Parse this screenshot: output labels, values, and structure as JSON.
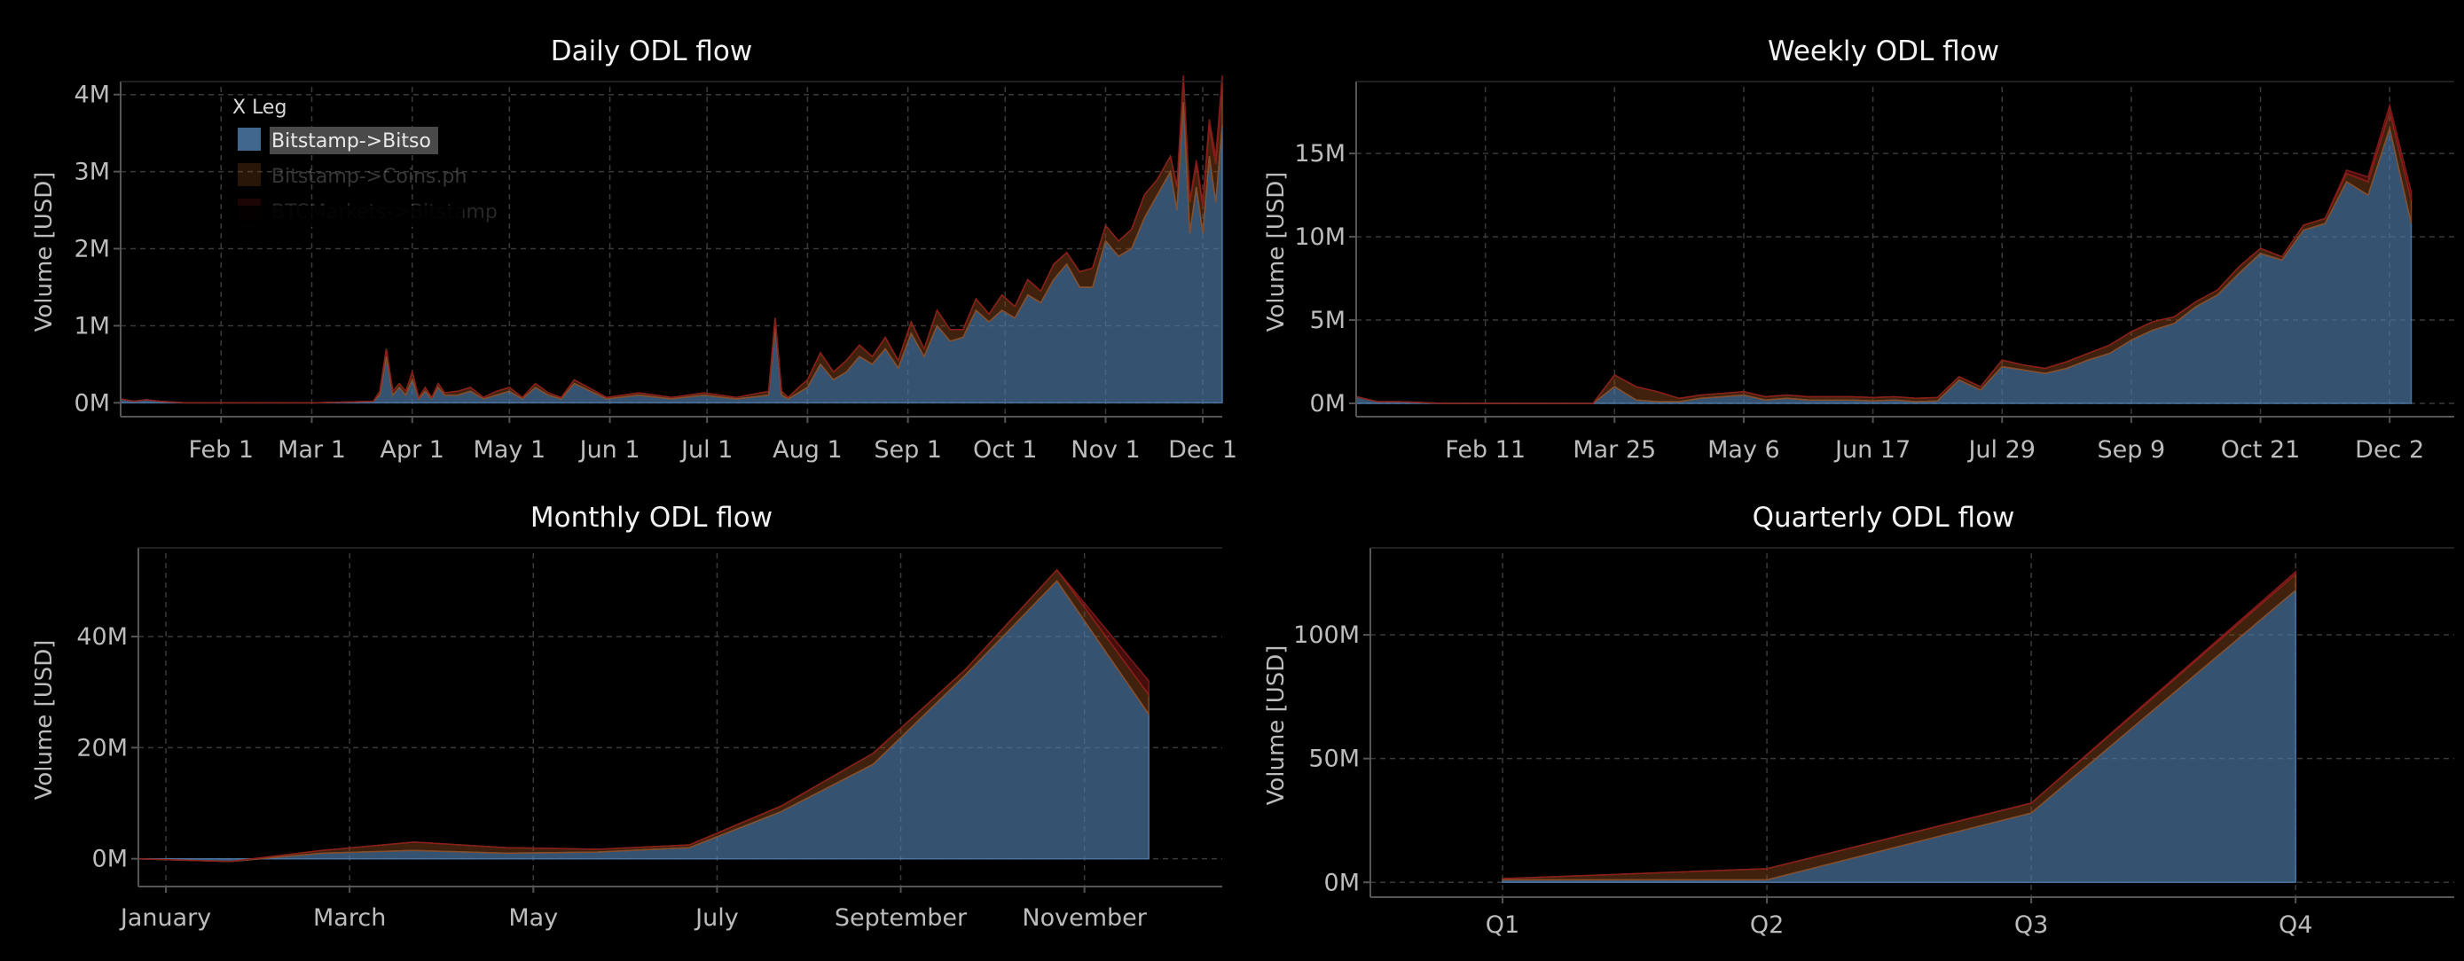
{
  "colors": {
    "background": "#000000",
    "series1": "#4e79a7",
    "series2": "#8c4a1f",
    "series3": "#8b1a1a",
    "grid": "#3a3a3a",
    "axis": "#555555",
    "text": "#e6e6e6"
  },
  "chart_data": [
    {
      "type": "area",
      "stacked": true,
      "title": "Daily ODL flow",
      "xlabel": "",
      "ylabel": "Volume [USD]",
      "x_domain": [
        0,
        340
      ],
      "x_ticks": [
        "Feb 1",
        "Mar 1",
        "Apr 1",
        "May 1",
        "Jun 1",
        "Jul 1",
        "Aug 1",
        "Sep 1",
        "Oct 1",
        "Nov 1",
        "Dec 1"
      ],
      "x_tick_positions": [
        31,
        59,
        90,
        120,
        151,
        181,
        212,
        243,
        273,
        304,
        334
      ],
      "y_ticks": [
        "0M",
        "1M",
        "2M",
        "3M",
        "4M"
      ],
      "y_tick_values": [
        0,
        1,
        2,
        3,
        4
      ],
      "ylim": [
        -0.18,
        4.1
      ],
      "grid": true,
      "legend": {
        "title": "X Leg",
        "position": "top-left",
        "items": [
          "Bitstamp->Bitso",
          "Bitstamp->Coins.ph",
          "BTCMarkets->Bitstamp"
        ]
      },
      "x": [
        0,
        4,
        8,
        12,
        16,
        20,
        40,
        60,
        78,
        80,
        82,
        84,
        86,
        88,
        90,
        92,
        94,
        96,
        98,
        100,
        104,
        108,
        112,
        116,
        120,
        124,
        128,
        132,
        136,
        140,
        150,
        160,
        170,
        180,
        190,
        200,
        202,
        204,
        206,
        208,
        212,
        216,
        220,
        224,
        228,
        232,
        236,
        240,
        244,
        248,
        252,
        256,
        260,
        264,
        268,
        272,
        276,
        280,
        284,
        288,
        292,
        296,
        300,
        304,
        308,
        312,
        316,
        320,
        324,
        326,
        328,
        330,
        332,
        334,
        336,
        338,
        340
      ],
      "series": [
        {
          "name": "Bitstamp->Bitso",
          "values": [
            0.05,
            0.02,
            0.04,
            0.02,
            0.01,
            0,
            0,
            0,
            0.02,
            0.1,
            0.6,
            0.1,
            0.2,
            0.1,
            0.3,
            0.05,
            0.15,
            0.05,
            0.2,
            0.1,
            0.1,
            0.15,
            0.05,
            0.1,
            0.15,
            0.05,
            0.2,
            0.1,
            0.05,
            0.25,
            0.05,
            0.1,
            0.05,
            0.1,
            0.05,
            0.1,
            1.0,
            0.1,
            0.05,
            0.1,
            0.2,
            0.5,
            0.3,
            0.4,
            0.6,
            0.5,
            0.7,
            0.45,
            0.9,
            0.6,
            1.0,
            0.8,
            0.85,
            1.2,
            1.05,
            1.2,
            1.1,
            1.4,
            1.3,
            1.6,
            1.8,
            1.5,
            1.5,
            2.1,
            1.9,
            2.0,
            2.4,
            2.7,
            3.0,
            2.5,
            3.9,
            2.2,
            2.8,
            2.2,
            3.2,
            2.6,
            3.6
          ]
        },
        {
          "name": "Bitstamp->Coins.ph",
          "values": [
            0,
            0,
            0,
            0,
            0,
            0,
            0,
            0,
            0,
            0.05,
            0.1,
            0.05,
            0.05,
            0.05,
            0.1,
            0.02,
            0.05,
            0.02,
            0.05,
            0.03,
            0.05,
            0.05,
            0.02,
            0.05,
            0.05,
            0.02,
            0.05,
            0.03,
            0.02,
            0.05,
            0.02,
            0.03,
            0.02,
            0.03,
            0.02,
            0.05,
            0.1,
            0.05,
            0.02,
            0.05,
            0.1,
            0.15,
            0.1,
            0.15,
            0.15,
            0.1,
            0.15,
            0.1,
            0.15,
            0.1,
            0.2,
            0.15,
            0.1,
            0.15,
            0.1,
            0.2,
            0.15,
            0.2,
            0.15,
            0.2,
            0.15,
            0.2,
            0.25,
            0.2,
            0.2,
            0.25,
            0.3,
            0.2,
            0.2,
            0.3,
            0.3,
            0.4,
            0.3,
            0.35,
            0.4,
            0.5,
            0.55
          ]
        },
        {
          "name": "BTCMarkets->Bitstamp",
          "values": [
            0,
            0,
            0,
            0,
            0,
            0,
            0,
            0,
            0,
            0,
            0,
            0,
            0,
            0,
            0,
            0,
            0,
            0,
            0,
            0,
            0,
            0,
            0,
            0,
            0,
            0,
            0,
            0,
            0,
            0,
            0,
            0,
            0,
            0,
            0,
            0,
            0,
            0,
            0,
            0,
            0,
            0,
            0,
            0,
            0,
            0,
            0,
            0,
            0,
            0,
            0,
            0,
            0,
            0,
            0,
            0,
            0,
            0,
            0,
            0,
            0,
            0,
            0,
            0,
            0,
            0,
            0,
            0,
            0,
            0.02,
            0.05,
            0.03,
            0.05,
            0.05,
            0.08,
            0.1,
            0.1
          ]
        }
      ]
    },
    {
      "type": "area",
      "stacked": true,
      "title": "Weekly ODL flow",
      "xlabel": "",
      "ylabel": "Volume [USD]",
      "x_domain": [
        0,
        51
      ],
      "x_ticks": [
        "Feb 11",
        "Mar 25",
        "May 6",
        "Jun 17",
        "Jul 29",
        "Sep 9",
        "Oct 21",
        "Dec 2"
      ],
      "x_tick_positions": [
        6,
        12,
        18,
        24,
        30,
        36,
        42,
        48
      ],
      "y_ticks": [
        "0M",
        "5M",
        "10M",
        "15M"
      ],
      "y_tick_values": [
        0,
        5,
        10,
        15
      ],
      "ylim": [
        -0.8,
        19
      ],
      "grid": true,
      "x": [
        0,
        1,
        2,
        3,
        4,
        5,
        6,
        7,
        8,
        9,
        10,
        11,
        12,
        13,
        14,
        15,
        16,
        17,
        18,
        19,
        20,
        21,
        22,
        23,
        24,
        25,
        26,
        27,
        28,
        29,
        30,
        31,
        32,
        33,
        34,
        35,
        36,
        37,
        38,
        39,
        40,
        41,
        42,
        43,
        44,
        45,
        46,
        47,
        48,
        49
      ],
      "series": [
        {
          "name": "Bitstamp->Bitso",
          "values": [
            0.4,
            0.1,
            0.1,
            0.05,
            0,
            0,
            0,
            0,
            0,
            0,
            0,
            0,
            1.0,
            0.2,
            0.1,
            0.1,
            0.3,
            0.4,
            0.5,
            0.2,
            0.3,
            0.2,
            0.2,
            0.2,
            0.15,
            0.2,
            0.1,
            0.15,
            1.4,
            0.8,
            2.2,
            2.0,
            1.8,
            2.1,
            2.6,
            3.0,
            3.8,
            4.4,
            4.8,
            5.8,
            6.5,
            7.8,
            9.0,
            8.6,
            10.4,
            10.8,
            13.3,
            12.5,
            16.5,
            10.8
          ]
        },
        {
          "name": "Bitstamp->Coins.ph",
          "values": [
            0,
            0,
            0,
            0,
            0,
            0,
            0,
            0,
            0,
            0,
            0,
            0,
            0.7,
            0.8,
            0.6,
            0.2,
            0.2,
            0.2,
            0.2,
            0.2,
            0.2,
            0.2,
            0.2,
            0.2,
            0.2,
            0.2,
            0.2,
            0.2,
            0.2,
            0.2,
            0.4,
            0.3,
            0.3,
            0.4,
            0.4,
            0.5,
            0.5,
            0.5,
            0.4,
            0.3,
            0.3,
            0.4,
            0.3,
            0.2,
            0.3,
            0.3,
            0.5,
            0.8,
            1.0,
            1.4
          ]
        },
        {
          "name": "BTCMarkets->Bitstamp",
          "values": [
            0,
            0,
            0,
            0,
            0,
            0,
            0,
            0,
            0,
            0,
            0,
            0,
            0,
            0,
            0,
            0,
            0,
            0,
            0,
            0,
            0,
            0,
            0,
            0,
            0,
            0,
            0,
            0,
            0,
            0,
            0,
            0,
            0,
            0,
            0,
            0,
            0,
            0,
            0,
            0,
            0,
            0,
            0,
            0,
            0,
            0,
            0.2,
            0.3,
            0.4,
            0.5
          ]
        }
      ]
    },
    {
      "type": "area",
      "stacked": true,
      "title": "Monthly ODL flow",
      "xlabel": "",
      "ylabel": "Volume [USD]",
      "x_domain": [
        -0.3,
        11.5
      ],
      "x_ticks": [
        "January",
        "March",
        "May",
        "July",
        "September",
        "November"
      ],
      "x_tick_positions": [
        0,
        2,
        4,
        6,
        8,
        10
      ],
      "y_ticks": [
        "0M",
        "20M",
        "40M"
      ],
      "y_tick_values": [
        0,
        20,
        40
      ],
      "ylim": [
        -5,
        55
      ],
      "grid": true,
      "x": [
        -0.3,
        0.7,
        1.7,
        2.7,
        3.7,
        4.7,
        5.7,
        6.7,
        7.7,
        8.7,
        9.7,
        10.7
      ],
      "series": [
        {
          "name": "Bitstamp->Bitso",
          "values": [
            0,
            -0.5,
            1.0,
            1.5,
            1.0,
            1.2,
            2.0,
            8.5,
            17.0,
            33.0,
            50.0,
            26.0
          ]
        },
        {
          "name": "Bitstamp->Coins.ph",
          "values": [
            0,
            0,
            0.5,
            1.5,
            1.0,
            0.5,
            0.5,
            1.0,
            2.0,
            1.0,
            2.0,
            3.5
          ]
        },
        {
          "name": "BTCMarkets->Bitstamp",
          "values": [
            0,
            0,
            0,
            0,
            0,
            0,
            0,
            0,
            0,
            0,
            0,
            2.5
          ]
        }
      ]
    },
    {
      "type": "area",
      "stacked": true,
      "title": "Quarterly ODL flow",
      "xlabel": "",
      "ylabel": "Volume [USD]",
      "x_domain": [
        -0.5,
        3.6
      ],
      "x_ticks": [
        "Q1",
        "Q2",
        "Q3",
        "Q4"
      ],
      "x_tick_positions": [
        0,
        1,
        2,
        3
      ],
      "y_ticks": [
        "0M",
        "50M",
        "100M"
      ],
      "y_tick_values": [
        0,
        50,
        100
      ],
      "ylim": [
        -6,
        133
      ],
      "grid": true,
      "x": [
        0,
        1,
        2,
        3
      ],
      "series": [
        {
          "name": "Bitstamp->Bitso",
          "values": [
            1.0,
            1.0,
            28.0,
            118.0
          ]
        },
        {
          "name": "Bitstamp->Coins.ph",
          "values": [
            0.5,
            4.5,
            4.0,
            6.5
          ]
        },
        {
          "name": "BTCMarkets->Bitstamp",
          "values": [
            0,
            0,
            0,
            1.0
          ]
        }
      ]
    }
  ]
}
